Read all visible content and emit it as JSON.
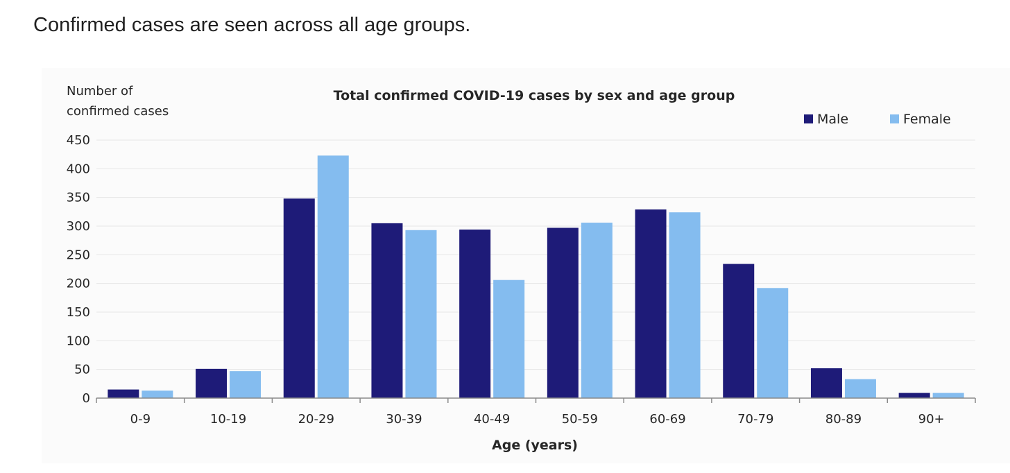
{
  "intro_text": "Confirmed cases are seen across all age groups.",
  "colors": {
    "male": "#1e1b78",
    "female": "#84bcef",
    "axis": "#8a8a8a",
    "grid": "#e6e6e6"
  },
  "chart_data": {
    "type": "bar",
    "title": "Total confirmed COVID-19 cases by sex and age group",
    "ylabel": [
      "Number of",
      "confirmed cases"
    ],
    "xlabel": "Age (years)",
    "ylim": [
      0,
      450
    ],
    "yticks": [
      0,
      50,
      100,
      150,
      200,
      250,
      300,
      350,
      400,
      450
    ],
    "grid": true,
    "legend_position": "top-right",
    "categories": [
      "0-9",
      "10-19",
      "20-29",
      "30-39",
      "40-49",
      "50-59",
      "60-69",
      "70-79",
      "80-89",
      "90+"
    ],
    "series": [
      {
        "name": "Male",
        "values": [
          15,
          51,
          348,
          305,
          294,
          297,
          329,
          234,
          52,
          9
        ]
      },
      {
        "name": "Female",
        "values": [
          13,
          47,
          423,
          293,
          206,
          306,
          324,
          192,
          33,
          9
        ]
      }
    ]
  }
}
